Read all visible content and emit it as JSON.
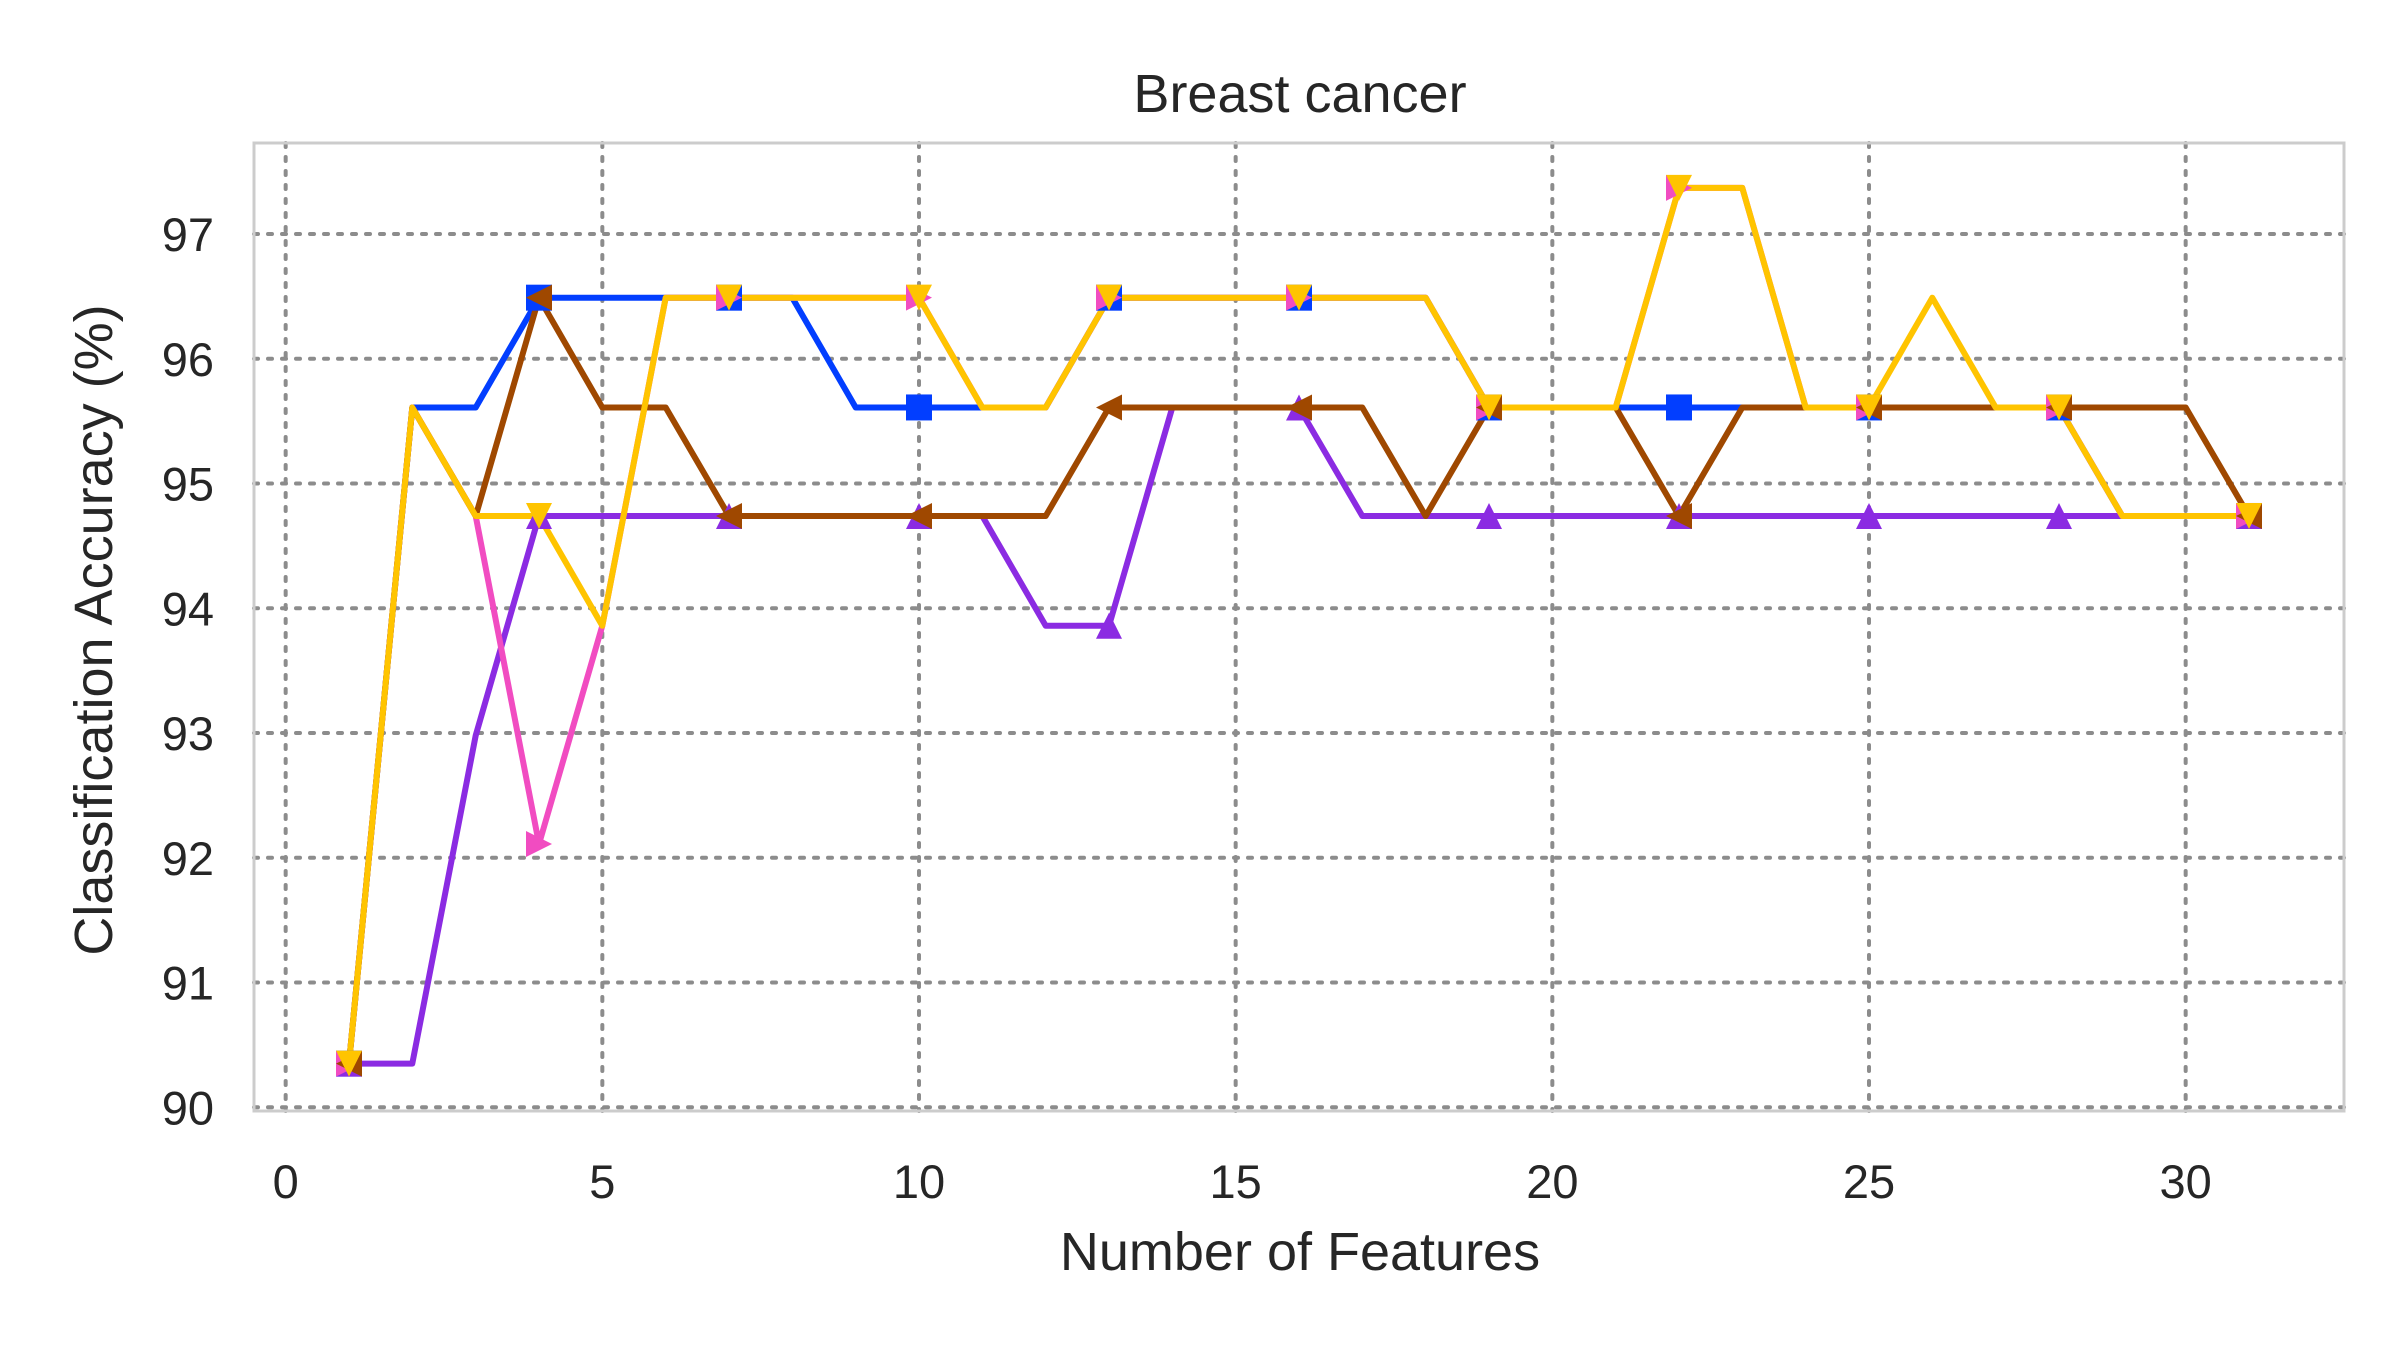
{
  "chart_data": {
    "type": "line",
    "title": "Breast cancer",
    "xlabel": "Number of Features",
    "ylabel": "Classification Accuracy (%)",
    "xlim": [
      -0.5,
      32.5
    ],
    "ylim": [
      89.97,
      97.73
    ],
    "xticks": [
      0,
      5,
      10,
      15,
      20,
      25,
      30
    ],
    "yticks": [
      90,
      91,
      92,
      93,
      94,
      95,
      96,
      97
    ],
    "grid": true,
    "marker_every": [
      1,
      4,
      7,
      10,
      13,
      16,
      19,
      22,
      25,
      28,
      31
    ],
    "x": [
      1,
      2,
      3,
      4,
      5,
      6,
      7,
      8,
      9,
      10,
      11,
      12,
      13,
      14,
      15,
      16,
      17,
      18,
      19,
      20,
      21,
      22,
      23,
      24,
      25,
      26,
      27,
      28,
      29,
      30,
      31
    ],
    "series": [
      {
        "color": "#023eff",
        "marker": "square",
        "values": [
          90.35,
          95.61,
          95.61,
          96.49,
          96.49,
          96.49,
          96.49,
          96.49,
          95.61,
          95.61,
          95.61,
          95.61,
          96.49,
          96.49,
          96.49,
          96.49,
          96.49,
          96.49,
          95.61,
          95.61,
          95.61,
          95.61,
          95.61,
          95.61,
          95.61,
          95.61,
          95.61,
          95.61,
          94.74,
          94.74,
          94.74
        ]
      },
      {
        "color": "#8b2be2",
        "marker": "triangle-up",
        "values": [
          90.35,
          90.35,
          92.98,
          94.74,
          94.74,
          94.74,
          94.74,
          94.74,
          94.74,
          94.74,
          94.74,
          93.86,
          93.86,
          95.61,
          95.61,
          95.61,
          94.74,
          94.74,
          94.74,
          94.74,
          94.74,
          94.74,
          94.74,
          94.74,
          94.74,
          94.74,
          94.74,
          94.74,
          94.74,
          94.74,
          94.74
        ]
      },
      {
        "color": "#f14cc1",
        "marker": "triangle-right",
        "values": [
          90.35,
          95.61,
          94.74,
          92.11,
          93.86,
          96.49,
          96.49,
          96.49,
          96.49,
          96.49,
          95.61,
          95.61,
          96.49,
          96.49,
          96.49,
          96.49,
          96.49,
          96.49,
          95.61,
          95.61,
          95.61,
          97.37,
          97.37,
          95.61,
          95.61,
          95.61,
          95.61,
          95.61,
          94.74,
          94.74,
          94.74
        ]
      },
      {
        "color": "#9f4800",
        "marker": "triangle-left",
        "values": [
          90.35,
          95.61,
          94.74,
          96.49,
          95.61,
          95.61,
          94.74,
          94.74,
          94.74,
          94.74,
          94.74,
          94.74,
          95.61,
          95.61,
          95.61,
          95.61,
          95.61,
          94.74,
          95.61,
          95.61,
          95.61,
          94.74,
          95.61,
          95.61,
          95.61,
          95.61,
          95.61,
          95.61,
          95.61,
          95.61,
          94.74
        ]
      },
      {
        "color": "#ffc400",
        "marker": "triangle-down",
        "values": [
          90.35,
          95.61,
          94.74,
          94.74,
          93.86,
          96.49,
          96.49,
          96.49,
          96.49,
          96.49,
          95.61,
          95.61,
          96.49,
          96.49,
          96.49,
          96.49,
          96.49,
          96.49,
          95.61,
          95.61,
          95.61,
          97.37,
          97.37,
          95.61,
          95.61,
          96.49,
          95.61,
          95.61,
          94.74,
          94.74,
          94.74
        ]
      }
    ]
  }
}
